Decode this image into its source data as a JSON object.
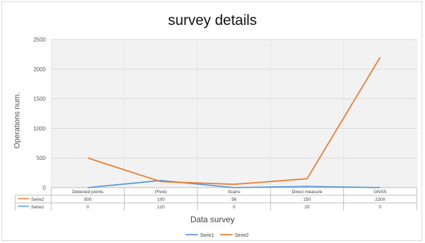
{
  "chart_data": {
    "type": "line",
    "title": "survey details",
    "xlabel": "Data survey",
    "ylabel": "Operations num.",
    "categories": [
      "Detected points",
      "Photo",
      "Scans",
      "Direct measure",
      "GNSS"
    ],
    "ylim": [
      0,
      2500
    ],
    "yticks": [
      0,
      500,
      1000,
      1500,
      2000,
      2500
    ],
    "series": [
      {
        "name": "Serie1",
        "values": [
          0,
          120,
          0,
          20,
          0
        ],
        "color": "#5b9bd5"
      },
      {
        "name": "Serie2",
        "values": [
          500,
          100,
          56,
          150,
          2200
        ],
        "color": "#ed7d31"
      }
    ],
    "data_table": true,
    "table_order": [
      "Serie2",
      "Serie1"
    ],
    "legend_position": "bottom",
    "grid": true
  }
}
